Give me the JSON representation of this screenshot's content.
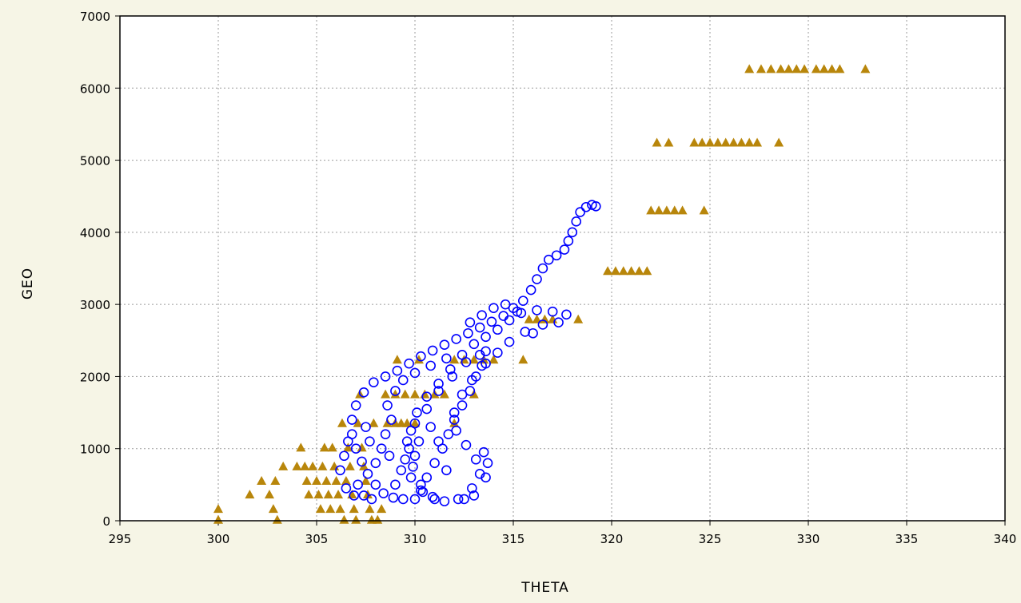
{
  "chart_data": {
    "type": "scatter",
    "title": "",
    "xlabel": "THETA",
    "ylabel": "GEO",
    "xlim": [
      295,
      340
    ],
    "ylim": [
      0,
      7000
    ],
    "xticks": [
      295,
      300,
      305,
      310,
      315,
      320,
      325,
      330,
      335,
      340
    ],
    "yticks": [
      0,
      1000,
      2000,
      3000,
      4000,
      5000,
      6000,
      7000
    ],
    "grid": true,
    "legend": "none",
    "plot_background": "#ffffff",
    "series": [
      {
        "marker": "triangle",
        "color": "#b8860b",
        "points": [
          [
            300.0,
            170
          ],
          [
            300.0,
            20
          ],
          [
            301.6,
            370
          ],
          [
            302.2,
            560
          ],
          [
            302.6,
            370
          ],
          [
            302.8,
            170
          ],
          [
            302.9,
            560
          ],
          [
            303.0,
            20
          ],
          [
            303.3,
            760
          ],
          [
            304.0,
            760
          ],
          [
            304.2,
            1020
          ],
          [
            304.4,
            760
          ],
          [
            304.5,
            560
          ],
          [
            304.6,
            370
          ],
          [
            304.8,
            760
          ],
          [
            305.0,
            560
          ],
          [
            305.1,
            370
          ],
          [
            305.2,
            170
          ],
          [
            305.3,
            760
          ],
          [
            305.4,
            1020
          ],
          [
            305.5,
            560
          ],
          [
            305.6,
            370
          ],
          [
            305.7,
            170
          ],
          [
            305.8,
            1020
          ],
          [
            305.9,
            760
          ],
          [
            306.0,
            560
          ],
          [
            306.1,
            370
          ],
          [
            306.2,
            170
          ],
          [
            306.3,
            1360
          ],
          [
            306.4,
            20
          ],
          [
            306.5,
            560
          ],
          [
            306.6,
            1020
          ],
          [
            306.7,
            760
          ],
          [
            306.8,
            370
          ],
          [
            306.9,
            170
          ],
          [
            307.0,
            20
          ],
          [
            307.1,
            1360
          ],
          [
            307.2,
            1760
          ],
          [
            307.3,
            1020
          ],
          [
            307.4,
            760
          ],
          [
            307.5,
            560
          ],
          [
            307.6,
            370
          ],
          [
            307.7,
            170
          ],
          [
            307.8,
            20
          ],
          [
            307.9,
            1360
          ],
          [
            308.1,
            20
          ],
          [
            308.3,
            170
          ],
          [
            308.6,
            1360
          ],
          [
            309.0,
            1360
          ],
          [
            309.3,
            1360
          ],
          [
            309.6,
            1360
          ],
          [
            310.0,
            1360
          ],
          [
            308.5,
            1760
          ],
          [
            309.0,
            1760
          ],
          [
            309.5,
            1760
          ],
          [
            310.0,
            1760
          ],
          [
            310.5,
            1760
          ],
          [
            311.0,
            1760
          ],
          [
            311.5,
            1760
          ],
          [
            309.1,
            2240
          ],
          [
            310.2,
            2240
          ],
          [
            312.0,
            2240
          ],
          [
            312.5,
            2240
          ],
          [
            313.0,
            2240
          ],
          [
            313.5,
            2240
          ],
          [
            314.0,
            2240
          ],
          [
            315.5,
            2240
          ],
          [
            313.0,
            1760
          ],
          [
            312.0,
            1360
          ],
          [
            315.8,
            2800
          ],
          [
            316.2,
            2800
          ],
          [
            316.6,
            2800
          ],
          [
            317.0,
            2800
          ],
          [
            318.3,
            2800
          ],
          [
            319.8,
            3470
          ],
          [
            320.2,
            3470
          ],
          [
            320.6,
            3470
          ],
          [
            321.0,
            3470
          ],
          [
            321.4,
            3470
          ],
          [
            321.8,
            3470
          ],
          [
            322.0,
            4310
          ],
          [
            322.4,
            4310
          ],
          [
            322.8,
            4310
          ],
          [
            323.2,
            4310
          ],
          [
            323.6,
            4310
          ],
          [
            324.7,
            4310
          ],
          [
            322.3,
            5250
          ],
          [
            322.9,
            5250
          ],
          [
            324.2,
            5250
          ],
          [
            324.6,
            5250
          ],
          [
            325.0,
            5250
          ],
          [
            325.4,
            5250
          ],
          [
            325.8,
            5250
          ],
          [
            326.2,
            5250
          ],
          [
            326.6,
            5250
          ],
          [
            327.0,
            5250
          ],
          [
            327.4,
            5250
          ],
          [
            328.5,
            5250
          ],
          [
            327.0,
            6270
          ],
          [
            327.6,
            6270
          ],
          [
            328.1,
            6270
          ],
          [
            328.6,
            6270
          ],
          [
            329.0,
            6270
          ],
          [
            329.4,
            6270
          ],
          [
            329.8,
            6270
          ],
          [
            330.4,
            6270
          ],
          [
            330.8,
            6270
          ],
          [
            331.2,
            6270
          ],
          [
            331.6,
            6270
          ],
          [
            332.9,
            6270
          ]
        ]
      },
      {
        "marker": "circle",
        "color": "#0000ff",
        "points": [
          [
            311.0,
            300
          ],
          [
            310.4,
            400
          ],
          [
            309.8,
            600
          ],
          [
            309.5,
            850
          ],
          [
            309.6,
            1100
          ],
          [
            310.0,
            1350
          ],
          [
            310.6,
            1550
          ],
          [
            311.2,
            1800
          ],
          [
            311.9,
            2000
          ],
          [
            312.6,
            2200
          ],
          [
            313.3,
            2300
          ],
          [
            313.6,
            2350
          ],
          [
            313.4,
            2150
          ],
          [
            312.9,
            1950
          ],
          [
            312.4,
            1750
          ],
          [
            312.0,
            1500
          ],
          [
            312.1,
            1250
          ],
          [
            312.6,
            1050
          ],
          [
            313.1,
            850
          ],
          [
            313.3,
            650
          ],
          [
            312.9,
            450
          ],
          [
            312.2,
            300
          ],
          [
            311.5,
            270
          ],
          [
            310.9,
            330
          ],
          [
            310.3,
            500
          ],
          [
            309.9,
            750
          ],
          [
            309.7,
            1000
          ],
          [
            309.8,
            1250
          ],
          [
            310.1,
            1500
          ],
          [
            310.6,
            1720
          ],
          [
            311.2,
            1900
          ],
          [
            311.8,
            2100
          ],
          [
            312.4,
            2300
          ],
          [
            313.0,
            2450
          ],
          [
            313.6,
            2550
          ],
          [
            314.2,
            2650
          ],
          [
            314.8,
            2780
          ],
          [
            315.4,
            2880
          ],
          [
            316.2,
            2920
          ],
          [
            317.0,
            2900
          ],
          [
            317.7,
            2860
          ],
          [
            316.5,
            2720
          ],
          [
            315.6,
            2620
          ],
          [
            314.8,
            2480
          ],
          [
            314.2,
            2330
          ],
          [
            313.6,
            2180
          ],
          [
            313.1,
            2000
          ],
          [
            312.8,
            1800
          ],
          [
            312.4,
            1600
          ],
          [
            312.0,
            1400
          ],
          [
            311.7,
            1200
          ],
          [
            311.4,
            1000
          ],
          [
            311.0,
            800
          ],
          [
            310.6,
            600
          ],
          [
            310.3,
            420
          ],
          [
            310.0,
            300
          ],
          [
            309.4,
            300
          ],
          [
            308.9,
            320
          ],
          [
            308.4,
            380
          ],
          [
            308.0,
            500
          ],
          [
            307.6,
            650
          ],
          [
            307.3,
            820
          ],
          [
            307.0,
            1000
          ],
          [
            306.8,
            1200
          ],
          [
            306.8,
            1400
          ],
          [
            307.0,
            1600
          ],
          [
            307.4,
            1780
          ],
          [
            307.9,
            1920
          ],
          [
            308.5,
            2000
          ],
          [
            309.1,
            2080
          ],
          [
            309.7,
            2180
          ],
          [
            310.3,
            2280
          ],
          [
            310.9,
            2360
          ],
          [
            311.5,
            2440
          ],
          [
            312.1,
            2520
          ],
          [
            312.7,
            2600
          ],
          [
            313.3,
            2680
          ],
          [
            313.9,
            2760
          ],
          [
            314.5,
            2840
          ],
          [
            315.0,
            2950
          ],
          [
            315.5,
            3050
          ],
          [
            315.9,
            3200
          ],
          [
            316.2,
            3350
          ],
          [
            316.5,
            3500
          ],
          [
            316.8,
            3620
          ],
          [
            317.2,
            3680
          ],
          [
            317.6,
            3760
          ],
          [
            317.8,
            3880
          ],
          [
            318.0,
            4000
          ],
          [
            318.2,
            4150
          ],
          [
            318.4,
            4280
          ],
          [
            318.7,
            4350
          ],
          [
            319.0,
            4380
          ],
          [
            319.2,
            4360
          ],
          [
            306.2,
            700
          ],
          [
            306.4,
            900
          ],
          [
            306.6,
            1100
          ],
          [
            307.1,
            500
          ],
          [
            307.4,
            350
          ],
          [
            307.8,
            300
          ],
          [
            306.9,
            350
          ],
          [
            306.5,
            450
          ],
          [
            308.8,
            1400
          ],
          [
            308.6,
            1600
          ],
          [
            309.0,
            1800
          ],
          [
            309.4,
            1950
          ],
          [
            310.0,
            2050
          ],
          [
            310.8,
            2150
          ],
          [
            311.6,
            2250
          ],
          [
            312.8,
            2750
          ],
          [
            313.4,
            2850
          ],
          [
            314.0,
            2950
          ],
          [
            314.6,
            3000
          ],
          [
            315.2,
            2900
          ],
          [
            313.5,
            950
          ],
          [
            313.7,
            800
          ],
          [
            313.6,
            600
          ],
          [
            313.0,
            350
          ],
          [
            312.5,
            300
          ],
          [
            311.6,
            700
          ],
          [
            311.2,
            1100
          ],
          [
            310.8,
            1300
          ],
          [
            310.2,
            1100
          ],
          [
            310.0,
            900
          ],
          [
            309.3,
            700
          ],
          [
            309.0,
            500
          ],
          [
            308.7,
            900
          ],
          [
            308.5,
            1200
          ],
          [
            308.3,
            1000
          ],
          [
            308.0,
            800
          ],
          [
            307.7,
            1100
          ],
          [
            307.5,
            1300
          ],
          [
            316.0,
            2600
          ],
          [
            317.3,
            2750
          ]
        ]
      }
    ]
  }
}
